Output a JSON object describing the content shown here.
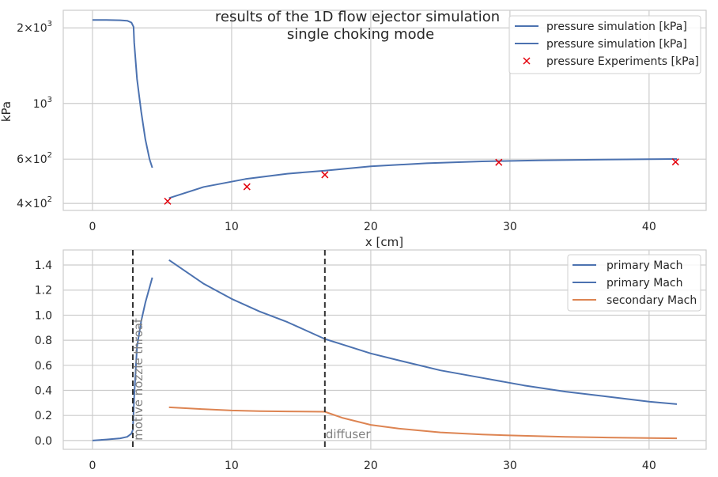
{
  "chart_data": [
    {
      "type": "line",
      "title": "results of the 1D flow ejector simulation",
      "subtitle": "single choking mode",
      "xlabel": "x [cm]",
      "ylabel": "kPa",
      "yscale": "log",
      "xlim": [
        -2.1,
        44.1
      ],
      "ylim": [
        375,
        2350
      ],
      "grid": true,
      "legend_position": "top-right",
      "x_ticks": [
        "0",
        "10",
        "20",
        "30",
        "40"
      ],
      "y_ticks": [
        {
          "value": 400,
          "base": "4",
          "exp": "2"
        },
        {
          "value": 600,
          "base": "6",
          "exp": "2"
        },
        {
          "value": 1000,
          "base": "",
          "exp": "3"
        },
        {
          "value": 2000,
          "base": "2",
          "exp": "3"
        }
      ],
      "series": [
        {
          "name": "pressure simulation [kPa]",
          "style": "line",
          "color": "#4c72b0",
          "x": [
            0,
            1,
            2,
            2.5,
            2.8,
            2.95,
            3.0,
            3.2,
            3.5,
            3.8,
            4.1,
            4.3
          ],
          "y": [
            2150,
            2150,
            2145,
            2135,
            2100,
            2020,
            1750,
            1250,
            930,
            720,
            600,
            555
          ]
        },
        {
          "name": "pressure simulation [kPa]",
          "style": "line",
          "color": "#4c72b0",
          "x": [
            5.5,
            8,
            11,
            14,
            16.7,
            20,
            24,
            28,
            32,
            36,
            40,
            42
          ],
          "y": [
            420,
            465,
            500,
            525,
            540,
            562,
            578,
            588,
            593,
            597,
            600,
            601
          ]
        },
        {
          "name": "pressure Experiments [kPa]",
          "style": "marker",
          "color": "#e3000b",
          "x": [
            5.4,
            11.1,
            16.7,
            29.2,
            41.9
          ],
          "y": [
            408,
            466,
            520,
            583,
            585
          ]
        }
      ]
    },
    {
      "type": "line",
      "xlim": [
        -2.1,
        44.1
      ],
      "ylim": [
        -0.07,
        1.52
      ],
      "grid": true,
      "legend_position": "top-right",
      "x_ticks": [
        "0",
        "10",
        "20",
        "30",
        "40"
      ],
      "y_ticks": [
        "0.0",
        "0.2",
        "0.4",
        "0.6",
        "0.8",
        "1.0",
        "1.2",
        "1.4"
      ],
      "series": [
        {
          "name": "primary Mach",
          "color": "#4c72b0",
          "x": [
            0,
            1,
            2,
            2.5,
            2.8,
            2.9,
            3.0,
            3.2,
            3.5,
            3.8,
            4.1,
            4.3
          ],
          "y": [
            0.0,
            0.008,
            0.018,
            0.03,
            0.055,
            0.085,
            0.35,
            0.75,
            0.95,
            1.1,
            1.22,
            1.3
          ]
        },
        {
          "name": "primary Mach",
          "color": "#4c72b0",
          "x": [
            5.5,
            8,
            10,
            12,
            14,
            16.7,
            18,
            20,
            22,
            25,
            28,
            31,
            34,
            37,
            40,
            42
          ],
          "y": [
            1.44,
            1.25,
            1.13,
            1.03,
            0.945,
            0.81,
            0.765,
            0.695,
            0.64,
            0.56,
            0.5,
            0.44,
            0.39,
            0.35,
            0.31,
            0.29
          ]
        },
        {
          "name": "secondary Mach",
          "color": "#dd8452",
          "x": [
            5.5,
            8,
            10,
            12,
            14,
            16.7,
            18,
            20,
            22,
            25,
            28,
            31,
            34,
            37,
            40,
            42
          ],
          "y": [
            0.265,
            0.25,
            0.24,
            0.235,
            0.232,
            0.23,
            0.18,
            0.125,
            0.095,
            0.065,
            0.048,
            0.038,
            0.03,
            0.024,
            0.02,
            0.018
          ]
        }
      ],
      "vlines": [
        {
          "x": 2.9,
          "label": "motive nozzle throat"
        },
        {
          "x": 16.7,
          "label": "diffuser"
        }
      ]
    }
  ]
}
